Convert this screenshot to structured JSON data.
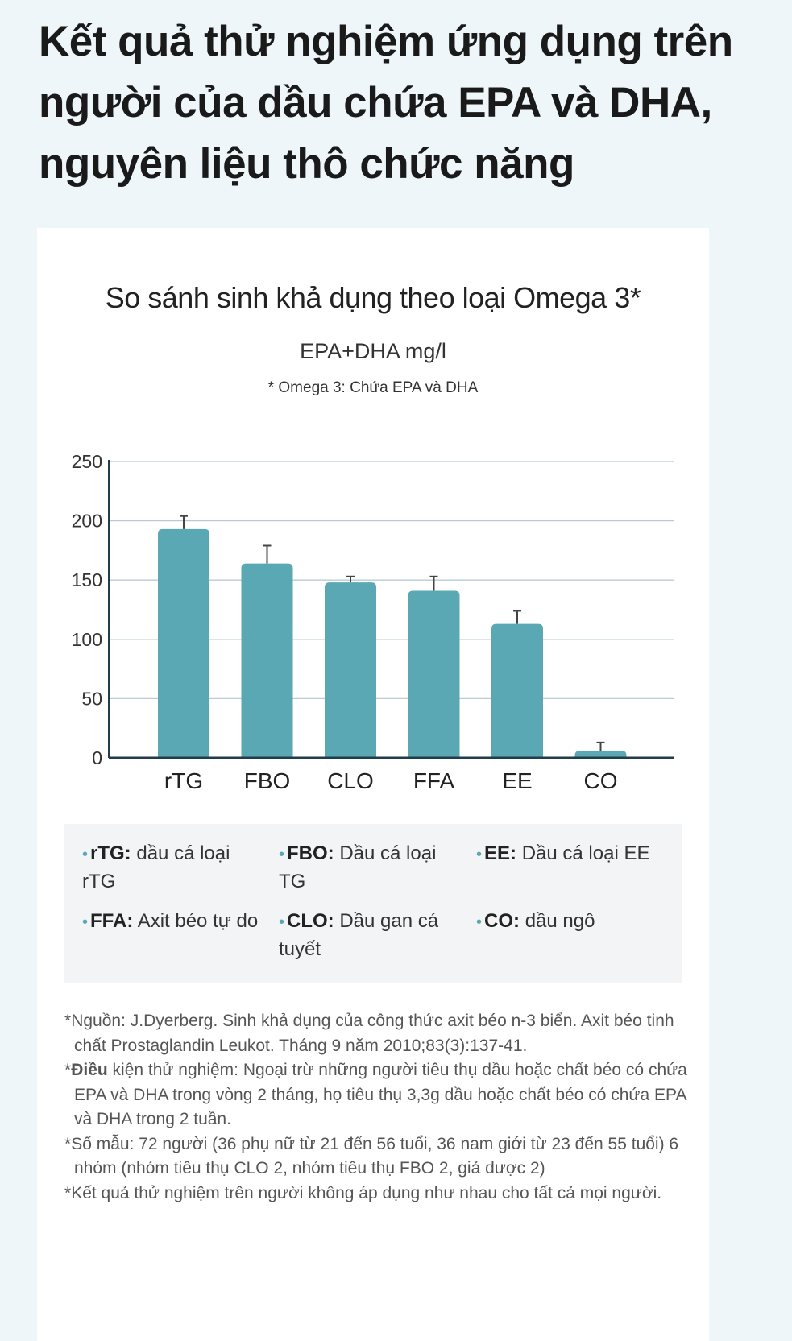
{
  "header": {
    "title": "Kết quả thử nghiệm ứng dụng trên người của dầu chứa EPA và DHA, nguyên liệu thô chức năng"
  },
  "chart_data": {
    "type": "bar",
    "title": "So sánh sinh khả dụng theo loại Omega 3*",
    "ylabel": "EPA+DHA mg/l",
    "subtitle": "* Omega 3: Chứa EPA và DHA",
    "categories": [
      "rTG",
      "FBO",
      "CLO",
      "FFA",
      "EE",
      "CO"
    ],
    "values": [
      193,
      164,
      148,
      141,
      113,
      6
    ],
    "error_upper": [
      204,
      179,
      153,
      153,
      124,
      13
    ],
    "ylim": [
      0,
      250
    ],
    "yticks": [
      "0",
      "50",
      "100",
      "150",
      "200",
      "250"
    ],
    "grid": true,
    "bar_color": "#5ba8b5"
  },
  "legend": [
    {
      "key": "rTG:",
      "text": "dầu cá loại rTG"
    },
    {
      "key": "FBO:",
      "text": "Dầu cá loại TG"
    },
    {
      "key": "EE:",
      "text": "Dầu cá loại EE"
    },
    {
      "key": "FFA:",
      "text": "Axit béo tự do"
    },
    {
      "key": "CLO:",
      "text": "Dầu gan cá tuyết"
    },
    {
      "key": "CO:",
      "text": "dầu ngô"
    }
  ],
  "notes": [
    {
      "key": "",
      "text": "Nguồn: J.Dyerberg. Sinh khả dụng của công thức axit béo n-3 biển. Axit béo tinh chất Prostaglandin Leukot. Tháng 9 năm 2010;83(3):137-41."
    },
    {
      "key": "Điều",
      "text": " kiện thử nghiệm: Ngoại trừ những người tiêu thụ dầu hoặc chất béo có chứa EPA và DHA trong vòng 2 tháng, họ tiêu thụ 3,3g dầu hoặc chất béo có chứa EPA và DHA trong 2 tuần."
    },
    {
      "key": "",
      "text": "Số mẫu: 72 người (36 phụ nữ từ 21 đến 56 tuổi, 36 nam giới từ 23 đến 55 tuổi) 6 nhóm (nhóm tiêu thụ CLO 2, nhóm tiêu thụ FBO 2, giả dược 2)"
    },
    {
      "key": "",
      "text": "Kết quả thử nghiệm trên người không áp dụng như nhau cho tất cả mọi người."
    }
  ]
}
